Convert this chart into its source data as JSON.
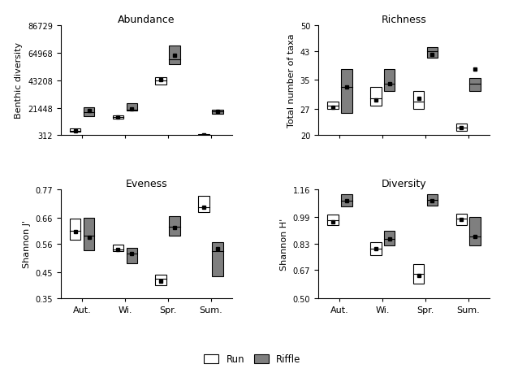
{
  "title_abundance": "Abundance",
  "title_richness": "Richness",
  "title_eveness": "Eveness",
  "title_diversity": "Diversity",
  "ylabel_abundance": "Benthic diversity",
  "ylabel_richness": "Total number of taxa",
  "ylabel_eveness": "Shannon J'",
  "ylabel_diversity": "Shannon H'",
  "seasons": [
    "Aut.",
    "Wi.",
    "Spr.",
    "Sum."
  ],
  "run_color": "#ffffff",
  "riffle_color": "#7f7f7f",
  "edge_color": "#000000",
  "abundance": {
    "run": {
      "q1": [
        2500,
        13000,
        40000,
        312
      ],
      "median": [
        3500,
        14000,
        43000,
        312
      ],
      "q3": [
        5000,
        15500,
        45500,
        500
      ],
      "mean": [
        3500,
        14000,
        43500,
        312
      ]
    },
    "riffle": {
      "q1": [
        15000,
        19000,
        56000,
        17000
      ],
      "median": [
        18000,
        20000,
        60000,
        18500
      ],
      "q3": [
        22000,
        25000,
        71000,
        20000
      ],
      "mean": [
        19500,
        20500,
        63000,
        18800
      ]
    }
  },
  "richness": {
    "run": {
      "q1": [
        27,
        28,
        27,
        21
      ],
      "median": [
        28,
        30,
        29,
        22
      ],
      "q3": [
        29,
        33,
        32,
        23
      ],
      "mean": [
        27.5,
        29.5,
        30,
        22
      ]
    },
    "riffle": {
      "q1": [
        26,
        32,
        41,
        32
      ],
      "median": [
        33,
        34,
        43,
        34
      ],
      "q3": [
        38,
        38,
        44,
        35.5
      ],
      "mean": [
        33,
        34,
        42,
        38
      ]
    }
  },
  "eveness": {
    "run": {
      "q1": [
        0.575,
        0.53,
        0.4,
        0.68
      ],
      "median": [
        0.61,
        0.538,
        0.425,
        0.7
      ],
      "q3": [
        0.655,
        0.555,
        0.44,
        0.745
      ],
      "mean": [
        0.605,
        0.537,
        0.415,
        0.7
      ]
    },
    "riffle": {
      "q1": [
        0.535,
        0.485,
        0.59,
        0.435
      ],
      "median": [
        0.59,
        0.523,
        0.625,
        0.53
      ],
      "q3": [
        0.66,
        0.545,
        0.665,
        0.565
      ],
      "mean": [
        0.585,
        0.523,
        0.623,
        0.54
      ]
    }
  },
  "diversity": {
    "run": {
      "q1": [
        0.94,
        0.76,
        0.59,
        0.94
      ],
      "median": [
        0.97,
        0.8,
        0.645,
        0.98
      ],
      "q3": [
        1.005,
        0.84,
        0.705,
        1.01
      ],
      "mean": [
        0.96,
        0.8,
        0.64,
        0.975
      ]
    },
    "riffle": {
      "q1": [
        1.055,
        0.82,
        1.06,
        0.82
      ],
      "median": [
        1.09,
        0.86,
        1.095,
        0.875
      ],
      "q3": [
        1.13,
        0.91,
        1.13,
        0.99
      ],
      "mean": [
        1.09,
        0.86,
        1.09,
        0.875
      ]
    }
  },
  "ylim_abundance": [
    312,
    86729
  ],
  "yticks_abundance": [
    312,
    21448,
    43208,
    64968,
    86729
  ],
  "ylim_richness": [
    20,
    50
  ],
  "yticks_richness": [
    20,
    27,
    35,
    43,
    50
  ],
  "ylim_eveness": [
    0.35,
    0.77
  ],
  "yticks_eveness": [
    0.35,
    0.45,
    0.56,
    0.66,
    0.77
  ],
  "ylim_diversity": [
    0.5,
    1.16
  ],
  "yticks_diversity": [
    0.5,
    0.67,
    0.83,
    0.99,
    1.16
  ]
}
